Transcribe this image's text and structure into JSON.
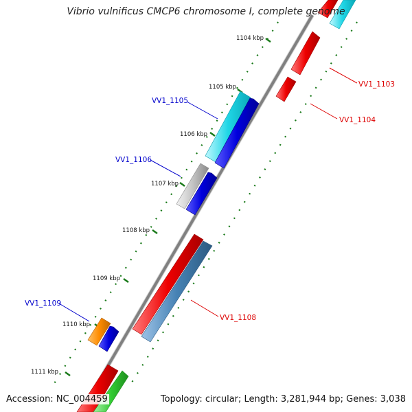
{
  "title": "Vibrio vulnificus CMCP6 chromosome I, complete genome",
  "footer": {
    "accession": "Accession: NC_004459",
    "topology": "Topology: circular; Length: 3,281,944 bp; Genes: 3,038"
  },
  "colors": {
    "backbone": "#808080",
    "tick": "#1a7a1a",
    "label_forward": "#0000cc",
    "label_reverse": "#dd0000",
    "cyan": "#1fd6e6",
    "blue": "#0000dd",
    "gray": "#b8b8b8",
    "red": "#ee0000",
    "steelblue": "#4682b4",
    "orange": "#ff8c00",
    "green": "#33cc33",
    "pink": "#ffc0c8"
  },
  "ticks": [
    {
      "label": "1104 kbp"
    },
    {
      "label": "1105 kbp"
    },
    {
      "label": "1106 kbp"
    },
    {
      "label": "1107 kbp"
    },
    {
      "label": "1108 kbp"
    },
    {
      "label": "1109 kbp"
    },
    {
      "label": "1110 kbp"
    },
    {
      "label": "1111 kbp"
    }
  ],
  "gene_labels": [
    {
      "text": "VV1_1103",
      "color_key": "label_reverse"
    },
    {
      "text": "VV1_1104",
      "color_key": "label_reverse"
    },
    {
      "text": "VV1_1105",
      "color_key": "label_forward"
    },
    {
      "text": "VV1_1106",
      "color_key": "label_forward"
    },
    {
      "text": "VV1_1108",
      "color_key": "label_reverse"
    },
    {
      "text": "VV1_1109",
      "color_key": "label_forward"
    }
  ]
}
